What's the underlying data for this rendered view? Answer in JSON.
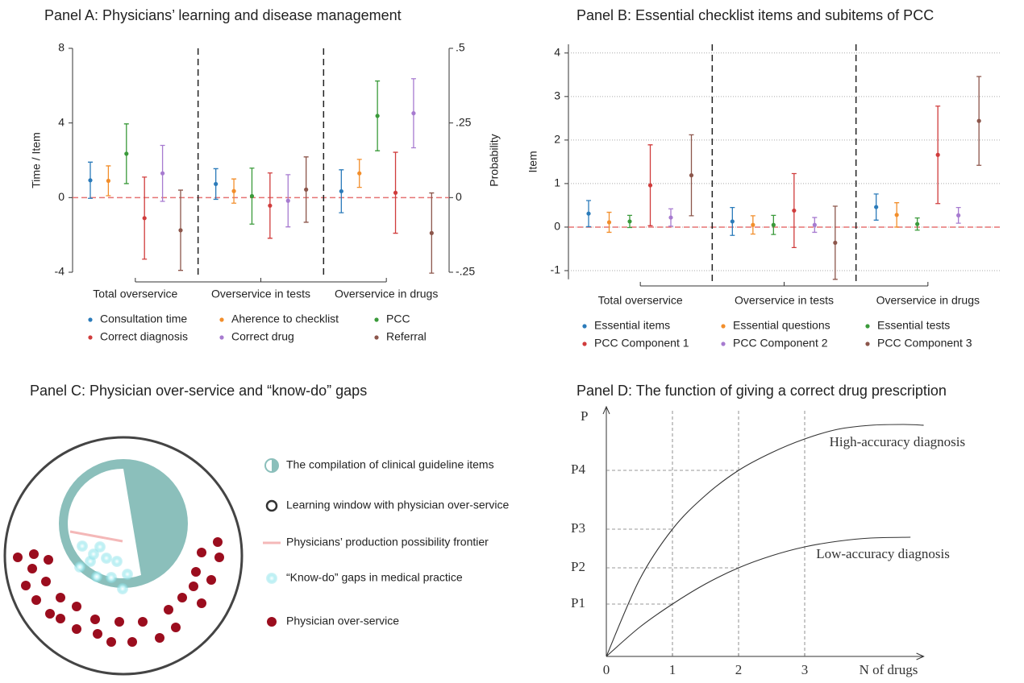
{
  "chart_data": [
    {
      "type": "errorbar",
      "title": "Panel A: Physicians’ learning and disease management",
      "y_label": "Time / Item",
      "y2_label": "Probability",
      "categories": [
        "Total overservice",
        "Overservice in tests",
        "Overservice in drugs"
      ],
      "ylim": [
        -4,
        8
      ],
      "yticks": [
        -4,
        0,
        4,
        8
      ],
      "y2lim": [
        -0.25,
        0.5
      ],
      "y2ticks": [
        {
          "value": -0.25,
          "label": "-.25"
        },
        0,
        {
          "value": 0.25,
          "label": ".25"
        },
        {
          "value": 0.5,
          "label": ".5"
        }
      ],
      "reference_line": 0,
      "grid": false,
      "series": [
        {
          "name": "Consultation time",
          "color": "#2b7bba",
          "values": [
            0.93,
            0.73,
            0.34
          ],
          "errors": [
            0.97,
            0.82,
            1.15
          ]
        },
        {
          "name": "Aherence to checklist",
          "color": "#f28e2b",
          "values": [
            0.9,
            0.35,
            1.3
          ],
          "errors": [
            0.8,
            0.65,
            0.75
          ]
        },
        {
          "name": "PCC",
          "color": "#3a9a3a",
          "values": [
            2.35,
            0.08,
            4.38
          ],
          "errors": [
            1.6,
            1.5,
            1.87
          ]
        },
        {
          "name": "Correct diagnosis",
          "color": "#d03c3c",
          "values": [
            -1.1,
            -0.43,
            0.26
          ],
          "errors": [
            2.2,
            1.75,
            2.17
          ]
        },
        {
          "name": "Correct drug",
          "color": "#a77bd0",
          "values": [
            1.3,
            -0.17,
            4.52
          ],
          "errors": [
            1.5,
            1.4,
            1.85
          ]
        },
        {
          "name": "Referral",
          "color": "#8c564b",
          "values": [
            -1.75,
            0.43,
            -1.9
          ],
          "errors": [
            2.15,
            1.75,
            2.15
          ]
        }
      ]
    },
    {
      "type": "errorbar",
      "title": "Panel B: Essential checklist items and subitems of PCC",
      "y_label": "Item",
      "categories": [
        "Total overservice",
        "Overservice in tests",
        "Overservice in drugs"
      ],
      "ylim": [
        -1.2,
        4.2
      ],
      "yticks": [
        -1,
        0,
        1,
        2,
        3,
        4
      ],
      "reference_line": 0,
      "grid": true,
      "series": [
        {
          "name": "Essential items",
          "color": "#2b7bba",
          "values": [
            0.31,
            0.13,
            0.46
          ],
          "errors": [
            0.3,
            0.32,
            0.3
          ]
        },
        {
          "name": "Essential questions",
          "color": "#f28e2b",
          "values": [
            0.11,
            0.05,
            0.28
          ],
          "errors": [
            0.23,
            0.21,
            0.28
          ]
        },
        {
          "name": "Essential tests",
          "color": "#3a9a3a",
          "values": [
            0.13,
            0.05,
            0.07
          ],
          "errors": [
            0.14,
            0.22,
            0.14
          ]
        },
        {
          "name": "PCC Component 1",
          "color": "#d03c3c",
          "values": [
            0.96,
            0.38,
            1.66
          ],
          "errors": [
            0.93,
            0.85,
            1.12
          ]
        },
        {
          "name": "PCC Component 2",
          "color": "#a77bd0",
          "values": [
            0.22,
            0.05,
            0.27
          ],
          "errors": [
            0.2,
            0.17,
            0.18
          ]
        },
        {
          "name": "PCC Component 3",
          "color": "#8c564b",
          "values": [
            1.19,
            -0.36,
            2.44
          ],
          "errors": [
            0.93,
            0.84,
            1.02
          ]
        }
      ]
    },
    {
      "type": "line",
      "title": "Panel D: The function of giving a correct drug prescription",
      "x_label": "N of drugs",
      "y_label": "P",
      "xlim": [
        0,
        4.8
      ],
      "xticks": [
        0,
        1,
        2,
        3
      ],
      "ylim": [
        0,
        3.1
      ],
      "yticks": [
        {
          "value": 0.65,
          "label": "P1"
        },
        {
          "value": 1.1,
          "label": "P2"
        },
        {
          "value": 1.58,
          "label": "P3"
        },
        {
          "value": 2.31,
          "label": "P4"
        }
      ],
      "grid": true,
      "series": [
        {
          "name": "High-accuracy diagnosis",
          "color": "#333333",
          "x": [
            0,
            0.5,
            1,
            1.5,
            2,
            2.5,
            3,
            3.5,
            4,
            4.5,
            4.8
          ],
          "values": [
            0,
            0.95,
            1.58,
            2.0,
            2.31,
            2.53,
            2.7,
            2.82,
            2.87,
            2.88,
            2.87
          ]
        },
        {
          "name": "Low-accuracy diagnosis",
          "color": "#333333",
          "x": [
            0,
            0.5,
            1,
            1.5,
            2,
            2.5,
            3,
            3.5,
            4,
            4.6
          ],
          "values": [
            0,
            0.36,
            0.65,
            0.9,
            1.1,
            1.25,
            1.36,
            1.43,
            1.47,
            1.48
          ]
        }
      ]
    }
  ],
  "diagram": {
    "title": "Panel C: Physician over-service and “know-do” gaps",
    "legend": [
      "The compilation of clinical guideline items",
      "Learning window with physician over-service",
      "Physicians’ production possibility frontier",
      "“Know-do” gaps in medical practice",
      "Physician over-service"
    ]
  }
}
